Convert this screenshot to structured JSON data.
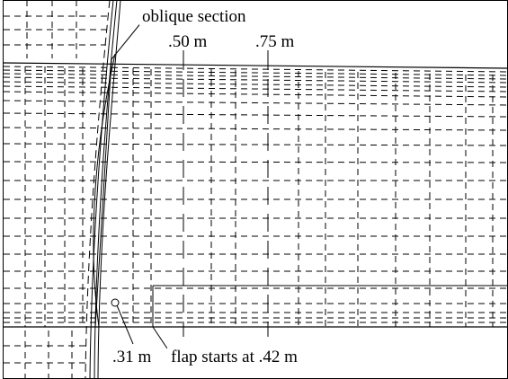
{
  "labels": {
    "oblique_section": "oblique section",
    "station_050": ".50 m",
    "station_075": ".75 m",
    "station_031": ".31 m",
    "flap_start": "flap starts at .42 m"
  }
}
